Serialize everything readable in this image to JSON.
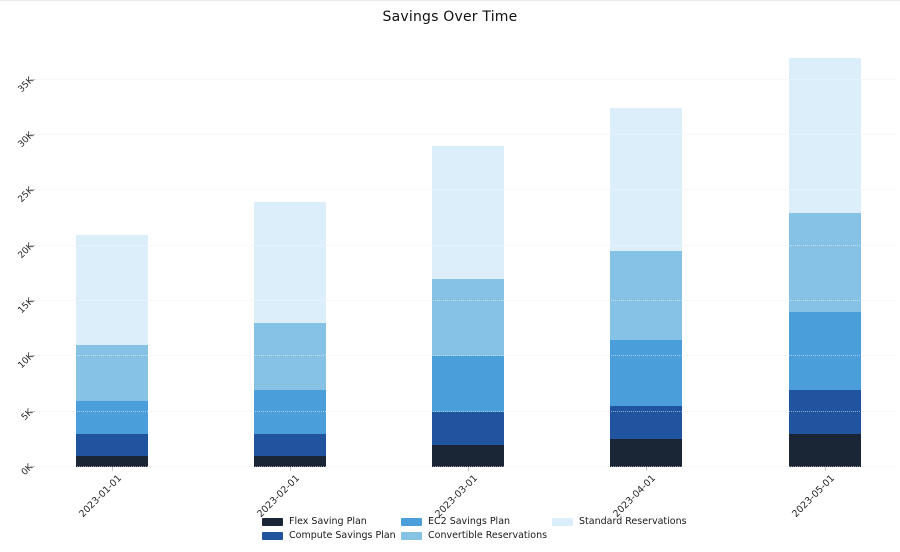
{
  "title": "Savings Over Time",
  "chart_data": {
    "type": "bar",
    "stacked": true,
    "title": "Savings Over Time",
    "xlabel": "",
    "ylabel": "",
    "categories": [
      "2023-01-01",
      "2023-02-01",
      "2023-03-01",
      "2023-04-01",
      "2023-05-01"
    ],
    "series": [
      {
        "name": "Flex Saving Plan",
        "color": "#1a2636",
        "values": [
          1000,
          1000,
          2000,
          2500,
          3000
        ]
      },
      {
        "name": "Compute Savings Plan",
        "color": "#21549f",
        "values": [
          2000,
          2000,
          3000,
          3000,
          4000
        ]
      },
      {
        "name": "EC2 Savings Plan",
        "color": "#4a9eda",
        "values": [
          3000,
          4000,
          5000,
          6000,
          7000
        ]
      },
      {
        "name": "Convertible Reservations",
        "color": "#86c1e6",
        "values": [
          5000,
          6000,
          7000,
          8000,
          9000
        ]
      },
      {
        "name": "Standard Reservations",
        "color": "#ddeefb",
        "values": [
          10000,
          11000,
          12000,
          13000,
          14000
        ]
      }
    ],
    "stack_totals": [
      21000,
      24000,
      29000,
      32500,
      37000
    ],
    "y_axis": {
      "tick_labels": [
        "0K",
        "5K",
        "10K",
        "15K",
        "20K",
        "25K",
        "30K",
        "35K"
      ],
      "tick_values": [
        0,
        5000,
        10000,
        15000,
        20000,
        25000,
        30000,
        35000
      ]
    },
    "ylim": [
      0,
      37700
    ],
    "grid": "horizontal-dotted",
    "legend_position": "bottom"
  }
}
